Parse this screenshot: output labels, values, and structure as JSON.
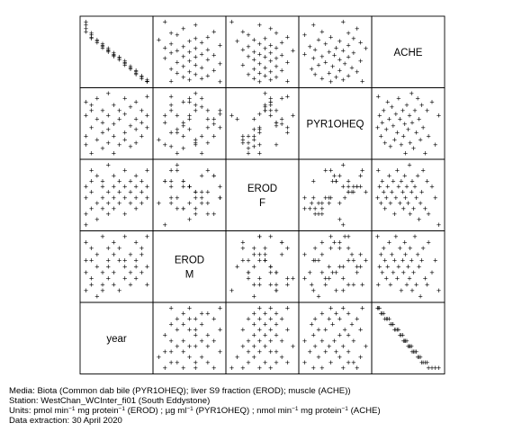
{
  "chart_data": {
    "type": "scatter",
    "variables": [
      "ACHE",
      "PYR1OHEQ",
      "EROD F",
      "EROD M",
      "year"
    ],
    "diagonal_labels": [
      {
        "variable": "ACHE",
        "lines": [
          "ACHE"
        ]
      },
      {
        "variable": "PYR1OHEQ",
        "lines": [
          "PYR1OHEQ"
        ]
      },
      {
        "variable": "EROD F",
        "lines": [
          "EROD",
          "F"
        ]
      },
      {
        "variable": "EROD M",
        "lines": [
          "EROD",
          "M"
        ]
      },
      {
        "variable": "year",
        "lines": [
          "year"
        ]
      }
    ],
    "grid": false,
    "legend": "none",
    "marker": "+",
    "observations": [
      {
        "year": 1,
        "ACHE": 0.95,
        "PYR1OHEQ": 0.52,
        "EROD F": 0.2,
        "EROD M": 0.3
      },
      {
        "year": 1,
        "ACHE": 0.9,
        "PYR1OHEQ": 0.35,
        "EROD F": 0.45,
        "EROD M": 0.55
      },
      {
        "year": 1,
        "ACHE": 0.85,
        "PYR1OHEQ": 0.6,
        "EROD F": 0.55,
        "EROD M": 0.45
      },
      {
        "year": 1,
        "ACHE": 0.8,
        "PYR1OHEQ": 0.4,
        "EROD F": 0.3,
        "EROD M": 0.7
      },
      {
        "year": 2,
        "ACHE": 0.78,
        "PYR1OHEQ": 0.55,
        "EROD F": 0.6,
        "EROD M": 0.35
      },
      {
        "year": 2,
        "ACHE": 0.75,
        "PYR1OHEQ": 0.3,
        "EROD F": 0.35,
        "EROD M": 0.4
      },
      {
        "year": 2,
        "ACHE": 0.72,
        "PYR1OHEQ": 0.45,
        "EROD F": 0.7,
        "EROD M": 0.65
      },
      {
        "year": 2,
        "ACHE": 0.7,
        "PYR1OHEQ": 0.58,
        "EROD F": 0.5,
        "EROD M": 0.55
      },
      {
        "year": 3,
        "ACHE": 0.68,
        "PYR1OHEQ": 0.38,
        "EROD F": 0.4,
        "EROD M": 0.25
      },
      {
        "year": 3,
        "ACHE": 0.66,
        "PYR1OHEQ": 0.5,
        "EROD F": 0.25,
        "EROD M": 0.5
      },
      {
        "year": 3,
        "ACHE": 0.64,
        "PYR1OHEQ": 0.62,
        "EROD F": 0.65,
        "EROD M": 0.6
      },
      {
        "year": 4,
        "ACHE": 0.62,
        "PYR1OHEQ": 0.42,
        "EROD F": 0.45,
        "EROD M": 0.35
      },
      {
        "year": 4,
        "ACHE": 0.6,
        "PYR1OHEQ": 0.55,
        "EROD F": 0.55,
        "EROD M": 0.75
      },
      {
        "year": 4,
        "ACHE": 0.58,
        "PYR1OHEQ": 0.33,
        "EROD F": 0.35,
        "EROD M": 0.45
      },
      {
        "year": 4,
        "ACHE": 0.56,
        "PYR1OHEQ": 0.48,
        "EROD F": 0.6,
        "EROD M": 0.3
      },
      {
        "year": 5,
        "ACHE": 0.55,
        "PYR1OHEQ": 0.65,
        "EROD F": 0.5,
        "EROD M": 0.55
      },
      {
        "year": 5,
        "ACHE": 0.53,
        "PYR1OHEQ": 0.36,
        "EROD F": 0.3,
        "EROD M": 0.65
      },
      {
        "year": 5,
        "ACHE": 0.52,
        "PYR1OHEQ": 0.52,
        "EROD F": 0.75,
        "EROD M": 0.4
      },
      {
        "year": 5,
        "ACHE": 0.5,
        "PYR1OHEQ": 0.44,
        "EROD F": 0.4,
        "EROD M": 0.5
      },
      {
        "year": 6,
        "ACHE": 0.48,
        "PYR1OHEQ": 0.58,
        "EROD F": 0.55,
        "EROD M": 0.35
      },
      {
        "year": 6,
        "ACHE": 0.46,
        "PYR1OHEQ": 0.3,
        "EROD F": 0.45,
        "EROD M": 0.6
      },
      {
        "year": 6,
        "ACHE": 0.45,
        "PYR1OHEQ": 0.47,
        "EROD F": 0.65,
        "EROD M": 0.7
      },
      {
        "year": 6,
        "ACHE": 0.43,
        "PYR1OHEQ": 0.4,
        "EROD F": 0.35,
        "EROD M": 0.45
      },
      {
        "year": 7,
        "ACHE": 0.42,
        "PYR1OHEQ": 0.55,
        "EROD F": 0.5,
        "EROD M": 0.55
      },
      {
        "year": 7,
        "ACHE": 0.4,
        "PYR1OHEQ": 0.35,
        "EROD F": 0.6,
        "EROD M": 0.3
      },
      {
        "year": 7,
        "ACHE": 0.38,
        "PYR1OHEQ": 0.5,
        "EROD F": 0.4,
        "EROD M": 0.65
      },
      {
        "year": 8,
        "ACHE": 0.36,
        "PYR1OHEQ": 0.62,
        "EROD F": 0.55,
        "EROD M": 0.5
      },
      {
        "year": 8,
        "ACHE": 0.34,
        "PYR1OHEQ": 0.42,
        "EROD F": 0.7,
        "EROD M": 0.4
      },
      {
        "year": 8,
        "ACHE": 0.32,
        "PYR1OHEQ": 0.53,
        "EROD F": 0.45,
        "EROD M": 0.75
      },
      {
        "year": 8,
        "ACHE": 0.3,
        "PYR1OHEQ": 0.38,
        "EROD F": 0.3,
        "EROD M": 0.55
      },
      {
        "year": 9,
        "ACHE": 0.28,
        "PYR1OHEQ": 0.46,
        "EROD F": 0.6,
        "EROD M": 0.45
      },
      {
        "year": 9,
        "ACHE": 0.26,
        "PYR1OHEQ": 0.57,
        "EROD F": 0.5,
        "EROD M": 0.6
      },
      {
        "year": 9,
        "ACHE": 0.24,
        "PYR1OHEQ": 0.34,
        "EROD F": 0.4,
        "EROD M": 0.35
      },
      {
        "year": 10,
        "ACHE": 0.22,
        "PYR1OHEQ": 0.5,
        "EROD F": 0.65,
        "EROD M": 0.7
      },
      {
        "year": 10,
        "ACHE": 0.2,
        "PYR1OHEQ": 0.6,
        "EROD F": 0.55,
        "EROD M": 0.5
      },
      {
        "year": 10,
        "ACHE": 0.18,
        "PYR1OHEQ": 0.44,
        "EROD F": 0.45,
        "EROD M": 0.4
      },
      {
        "year": 10,
        "ACHE": 0.16,
        "PYR1OHEQ": 0.36,
        "EROD F": 0.35,
        "EROD M": 0.55
      },
      {
        "year": 11,
        "ACHE": 0.14,
        "PYR1OHEQ": 0.55,
        "EROD F": 0.5,
        "EROD M": 0.65
      },
      {
        "year": 11,
        "ACHE": 0.12,
        "PYR1OHEQ": 0.48,
        "EROD F": 0.6,
        "EROD M": 0.45
      },
      {
        "year": 11,
        "ACHE": 0.1,
        "PYR1OHEQ": 0.4,
        "EROD F": 0.4,
        "EROD M": 0.6
      },
      {
        "year": 12,
        "ACHE": 0.08,
        "PYR1OHEQ": 0.52,
        "EROD F": 0.55,
        "EROD M": 0.5
      },
      {
        "year": 12,
        "ACHE": 0.06,
        "PYR1OHEQ": 0.63,
        "EROD F": 0.7,
        "EROD M": 0.35
      },
      {
        "year": 12,
        "ACHE": 0.05,
        "PYR1OHEQ": 0.45,
        "EROD F": 0.45,
        "EROD M": 0.75
      }
    ]
  },
  "footer": {
    "media": "Media: Biota (Common dab bile (PYR1OHEQ); liver S9 fraction (EROD); muscle (ACHE))",
    "station": "Station: WestChan_WCInter_fi01 (South Eddystone)",
    "units_parts": {
      "prefix": "Units:  pmol min",
      "sup1": "−1",
      "mid1": " mg protein",
      "sup2": "−1",
      "mid2": " (EROD) ;  µg ml",
      "sup3": "−1",
      "mid3": " (PYR1OHEQ) ;  nmol min",
      "sup4": "−1",
      "mid4": " mg protein",
      "sup5": "−1",
      "suffix": " (ACHE)"
    },
    "extraction": "Data extraction: 30 April 2020"
  }
}
